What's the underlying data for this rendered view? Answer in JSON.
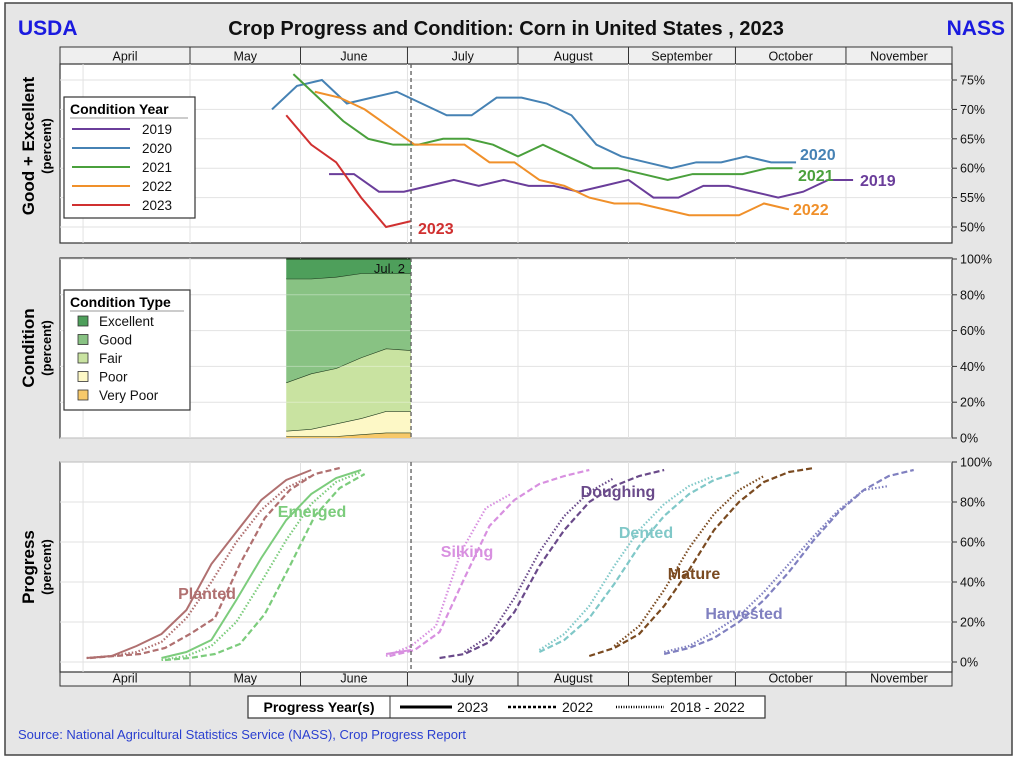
{
  "header": {
    "left_logo": "USDA",
    "title": "Crop Progress and Condition: Corn in United States , 2023",
    "right_logo": "NASS"
  },
  "months": [
    "April",
    "May",
    "June",
    "July",
    "August",
    "September",
    "October",
    "November"
  ],
  "marker_label": "Jul. 2",
  "marker_date": "07-02",
  "colors": {
    "logo": "#1a1adf",
    "source": "#2a3fd0"
  },
  "chart_data": [
    {
      "type": "line",
      "ylabel": "Good + Excellent",
      "ylabel_sub": "(percent)",
      "ylim": [
        48,
        78
      ],
      "yticks": [
        50,
        55,
        60,
        65,
        70,
        75
      ],
      "ytick_suffix": "%",
      "legend_title": "Condition Year",
      "legend_placement": "left",
      "grid": true,
      "series": [
        {
          "name": "2019",
          "color": "#6a3d9a",
          "dates": [
            "06-09",
            "06-16",
            "06-23",
            "06-30",
            "07-07",
            "07-14",
            "07-21",
            "07-28",
            "08-04",
            "08-11",
            "08-18",
            "08-25",
            "09-01",
            "09-08",
            "09-15",
            "09-22",
            "09-29",
            "10-06",
            "10-13",
            "10-20",
            "10-27",
            "11-03"
          ],
          "values": [
            59,
            59,
            56,
            56,
            57,
            58,
            57,
            58,
            57,
            57,
            56,
            57,
            58,
            55,
            55,
            57,
            57,
            56,
            55,
            56,
            58,
            58
          ]
        },
        {
          "name": "2020",
          "color": "#4682b4",
          "dates": [
            "05-24",
            "05-31",
            "06-07",
            "06-14",
            "06-21",
            "06-28",
            "07-05",
            "07-12",
            "07-19",
            "07-26",
            "08-02",
            "08-09",
            "08-16",
            "08-23",
            "08-30",
            "09-06",
            "09-13",
            "09-20",
            "09-27",
            "10-04",
            "10-11",
            "10-18"
          ],
          "values": [
            70,
            74,
            75,
            71,
            72,
            73,
            71,
            69,
            69,
            72,
            72,
            71,
            69,
            64,
            62,
            61,
            60,
            61,
            61,
            62,
            61,
            61
          ]
        },
        {
          "name": "2021",
          "color": "#4aa03c",
          "dates": [
            "05-30",
            "06-06",
            "06-13",
            "06-20",
            "06-27",
            "07-04",
            "07-11",
            "07-18",
            "07-25",
            "08-01",
            "08-08",
            "08-15",
            "08-22",
            "08-29",
            "09-05",
            "09-12",
            "09-19",
            "09-26",
            "10-03",
            "10-10",
            "10-17"
          ],
          "values": [
            76,
            72,
            68,
            65,
            64,
            64,
            65,
            65,
            64,
            62,
            64,
            62,
            60,
            60,
            59,
            58,
            59,
            59,
            59,
            60,
            60
          ]
        },
        {
          "name": "2022",
          "color": "#f0902a",
          "dates": [
            "06-05",
            "06-12",
            "06-19",
            "06-26",
            "07-03",
            "07-10",
            "07-17",
            "07-24",
            "07-31",
            "08-07",
            "08-14",
            "08-21",
            "08-28",
            "09-04",
            "09-11",
            "09-18",
            "09-25",
            "10-02",
            "10-09",
            "10-16"
          ],
          "values": [
            73,
            72,
            70,
            67,
            64,
            64,
            64,
            61,
            61,
            58,
            57,
            55,
            54,
            54,
            53,
            52,
            52,
            52,
            54,
            53
          ]
        },
        {
          "name": "2023",
          "color": "#d03030",
          "dates": [
            "05-28",
            "06-04",
            "06-11",
            "06-18",
            "06-25",
            "07-02"
          ],
          "values": [
            69,
            64,
            61,
            55,
            50,
            51
          ]
        }
      ]
    },
    {
      "type": "area",
      "stacked": true,
      "ylabel": "Condition",
      "ylabel_sub": "(percent)",
      "ylim": [
        0,
        100
      ],
      "yticks": [
        0,
        20,
        40,
        60,
        80,
        100
      ],
      "ytick_suffix": "%",
      "legend_title": "Condition Type",
      "legend_placement": "left",
      "grid": true,
      "dates": [
        "05-28",
        "06-04",
        "06-11",
        "06-18",
        "06-25",
        "07-02"
      ],
      "series": [
        {
          "name": "Very Poor",
          "color": "#f7c96a",
          "values": [
            1,
            1,
            1,
            2,
            3,
            3
          ]
        },
        {
          "name": "Poor",
          "color": "#fdf8c6",
          "values": [
            3,
            4,
            7,
            9,
            12,
            12
          ]
        },
        {
          "name": "Fair",
          "color": "#c9e3a1",
          "values": [
            27,
            31,
            31,
            34,
            35,
            34
          ]
        },
        {
          "name": "Good",
          "color": "#88c283",
          "values": [
            58,
            53,
            51,
            47,
            42,
            43
          ]
        },
        {
          "name": "Excellent",
          "color": "#4e9f5b",
          "values": [
            11,
            11,
            10,
            8,
            8,
            8
          ]
        }
      ],
      "legend_order": [
        "Excellent",
        "Good",
        "Fair",
        "Poor",
        "Very Poor"
      ]
    },
    {
      "type": "line",
      "ylabel": "Progress",
      "ylabel_sub": "(percent)",
      "ylim": [
        0,
        100
      ],
      "yticks": [
        0,
        20,
        40,
        60,
        80,
        100
      ],
      "ytick_suffix": "%",
      "legend_title": "Progress Year(s)",
      "legend_placement": "bottom",
      "legend": [
        {
          "key": "2023",
          "style": "solid"
        },
        {
          "key": "2022",
          "style": "dashed"
        },
        {
          "key": "2018 - 2022",
          "style": "dotted"
        }
      ],
      "grid": true,
      "stages": [
        {
          "name": "Planted",
          "color": "#b07070",
          "series": [
            {
              "key": "2023",
              "dates": [
                "04-02",
                "04-09",
                "04-16",
                "04-23",
                "04-30",
                "05-07",
                "05-14",
                "05-21",
                "05-28",
                "06-04"
              ],
              "values": [
                2,
                3,
                8,
                14,
                26,
                49,
                65,
                81,
                91,
                96
              ]
            },
            {
              "key": "2022",
              "dates": [
                "04-03",
                "04-10",
                "04-17",
                "04-24",
                "05-01",
                "05-08",
                "05-15",
                "05-22",
                "05-29",
                "06-05",
                "06-12"
              ],
              "values": [
                2,
                3,
                4,
                7,
                14,
                22,
                49,
                72,
                86,
                94,
                97
              ]
            },
            {
              "key": "2018 - 2022",
              "dates": [
                "04-02",
                "04-09",
                "04-16",
                "04-23",
                "04-30",
                "05-07",
                "05-14",
                "05-21",
                "05-28",
                "06-04"
              ],
              "values": [
                2,
                3,
                5,
                10,
                22,
                40,
                60,
                76,
                87,
                93
              ]
            }
          ]
        },
        {
          "name": "Emerged",
          "color": "#7ccc7c",
          "series": [
            {
              "key": "2023",
              "dates": [
                "04-23",
                "04-30",
                "05-07",
                "05-14",
                "05-21",
                "05-28",
                "06-04",
                "06-11",
                "06-18"
              ],
              "values": [
                2,
                5,
                11,
                31,
                52,
                71,
                84,
                92,
                96
              ]
            },
            {
              "key": "2022",
              "dates": [
                "04-24",
                "05-01",
                "05-08",
                "05-15",
                "05-22",
                "05-29",
                "06-05",
                "06-12",
                "06-19"
              ],
              "values": [
                1,
                2,
                4,
                9,
                24,
                48,
                73,
                87,
                94
              ]
            },
            {
              "key": "2018 - 2022",
              "dates": [
                "04-23",
                "04-30",
                "05-07",
                "05-14",
                "05-21",
                "05-28",
                "06-04",
                "06-11",
                "06-18"
              ],
              "values": [
                1,
                3,
                8,
                20,
                40,
                61,
                79,
                90,
                95
              ]
            }
          ]
        },
        {
          "name": "Silking",
          "color": "#d890e0",
          "series": [
            {
              "key": "2023",
              "dates": [
                "06-25",
                "07-02"
              ],
              "values": [
                4,
                6
              ]
            },
            {
              "key": "2022",
              "dates": [
                "06-26",
                "07-03",
                "07-10",
                "07-17",
                "07-24",
                "07-31",
                "08-07",
                "08-14",
                "08-21"
              ],
              "values": [
                3,
                6,
                15,
                42,
                68,
                81,
                89,
                93,
                96
              ]
            },
            {
              "key": "2018 - 2022",
              "dates": [
                "06-25",
                "07-02",
                "07-09",
                "07-16",
                "07-23",
                "07-30"
              ],
              "values": [
                3,
                8,
                18,
                55,
                77,
                84
              ]
            }
          ]
        },
        {
          "name": "Doughing",
          "color": "#6a4a8a",
          "series": [
            {
              "key": "2022",
              "dates": [
                "07-10",
                "07-17",
                "07-24",
                "07-31",
                "08-07",
                "08-14",
                "08-21",
                "08-28",
                "09-04",
                "09-11"
              ],
              "values": [
                2,
                4,
                10,
                25,
                48,
                66,
                80,
                88,
                93,
                96
              ]
            },
            {
              "key": "2018 - 2022",
              "dates": [
                "07-17",
                "07-24",
                "07-31",
                "08-07",
                "08-14",
                "08-21",
                "08-28"
              ],
              "values": [
                5,
                13,
                32,
                55,
                73,
                85,
                92
              ]
            }
          ]
        },
        {
          "name": "Dented",
          "color": "#80c8c8",
          "series": [
            {
              "key": "2022",
              "dates": [
                "08-07",
                "08-14",
                "08-21",
                "08-28",
                "09-04",
                "09-11",
                "09-18",
                "09-25",
                "10-02"
              ],
              "values": [
                5,
                11,
                22,
                39,
                58,
                73,
                84,
                91,
                95
              ]
            },
            {
              "key": "2018 - 2022",
              "dates": [
                "08-07",
                "08-14",
                "08-21",
                "08-28",
                "09-04",
                "09-11",
                "09-18",
                "09-25"
              ],
              "values": [
                6,
                14,
                28,
                48,
                66,
                79,
                88,
                93
              ]
            }
          ]
        },
        {
          "name": "Mature",
          "color": "#7a4a20",
          "series": [
            {
              "key": "2022",
              "dates": [
                "08-21",
                "08-28",
                "09-04",
                "09-11",
                "09-18",
                "09-25",
                "10-02",
                "10-09",
                "10-16",
                "10-23"
              ],
              "values": [
                3,
                7,
                14,
                28,
                46,
                66,
                80,
                90,
                95,
                97
              ]
            },
            {
              "key": "2018 - 2022",
              "dates": [
                "08-28",
                "09-04",
                "09-11",
                "09-18",
                "09-25",
                "10-02",
                "10-09"
              ],
              "values": [
                8,
                18,
                36,
                57,
                74,
                86,
                93
              ]
            }
          ]
        },
        {
          "name": "Harvested",
          "color": "#8080c0",
          "series": [
            {
              "key": "2022",
              "dates": [
                "09-11",
                "09-18",
                "09-25",
                "10-02",
                "10-09",
                "10-16",
                "10-23",
                "10-30",
                "11-06",
                "11-13",
                "11-20"
              ],
              "values": [
                4,
                7,
                12,
                20,
                31,
                45,
                61,
                75,
                86,
                93,
                96
              ]
            },
            {
              "key": "2018 - 2022",
              "dates": [
                "09-11",
                "09-18",
                "09-25",
                "10-02",
                "10-09",
                "10-16",
                "10-23",
                "10-30",
                "11-06",
                "11-13"
              ],
              "values": [
                5,
                8,
                15,
                23,
                35,
                49,
                63,
                76,
                86,
                88
              ]
            }
          ]
        }
      ]
    }
  ],
  "footer": {
    "source": "Source: National Agricultural Statistics Service (NASS), Crop Progress Report"
  }
}
